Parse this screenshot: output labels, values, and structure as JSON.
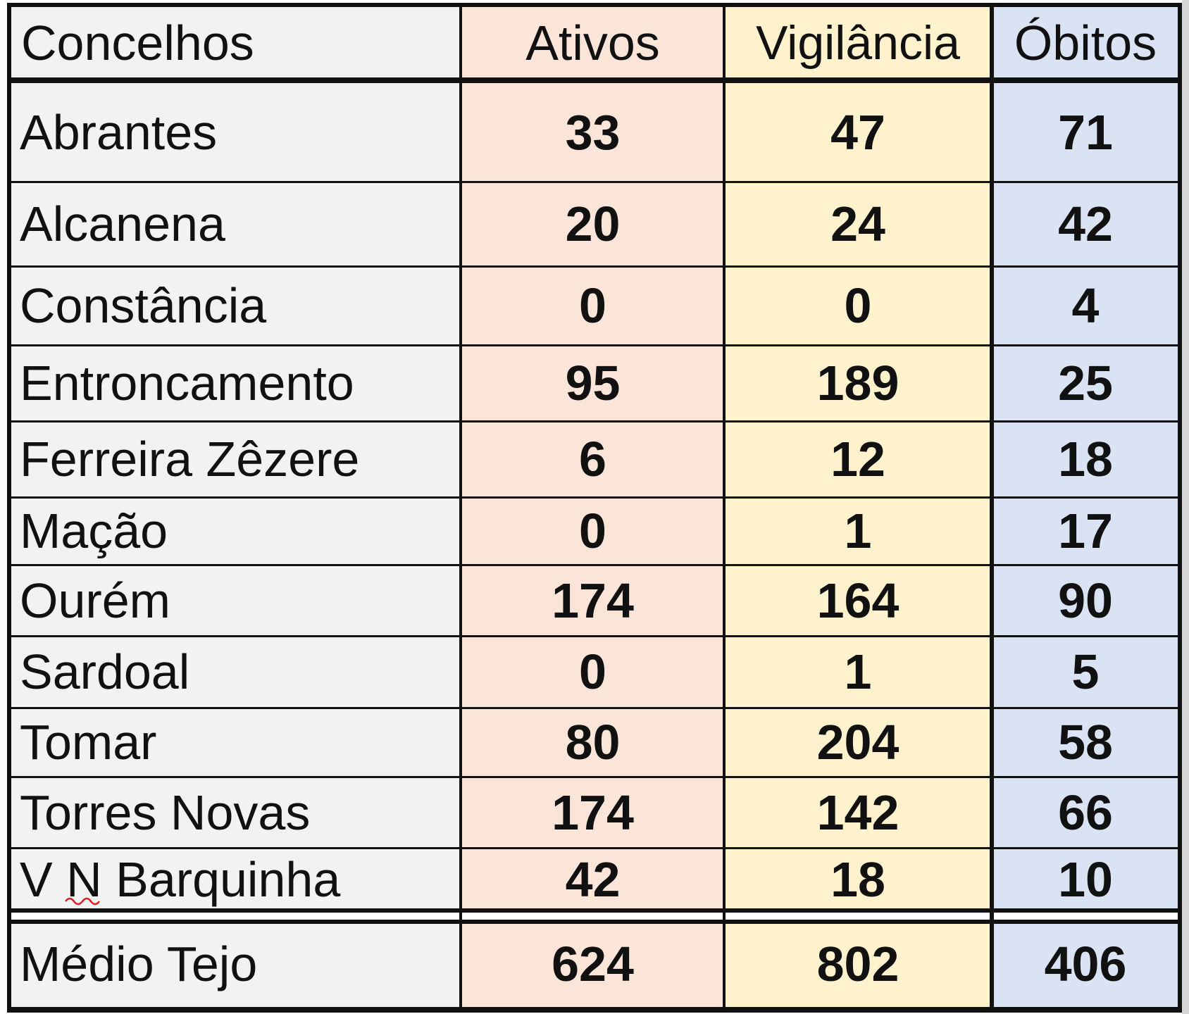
{
  "table": {
    "headers": {
      "concelhos": "Concelhos",
      "ativos": "Ativos",
      "vigilancia": "Vigilância",
      "obitos": "Óbitos"
    },
    "rows": [
      {
        "concelho": "Abrantes",
        "ativos": "33",
        "vigilancia": "47",
        "obitos": "71"
      },
      {
        "concelho": "Alcanena",
        "ativos": "20",
        "vigilancia": "24",
        "obitos": "42"
      },
      {
        "concelho": "Constância",
        "ativos": "0",
        "vigilancia": "0",
        "obitos": "4"
      },
      {
        "concelho": "Entroncamento",
        "ativos": "95",
        "vigilancia": "189",
        "obitos": "25"
      },
      {
        "concelho": "Ferreira Zêzere",
        "ativos": "6",
        "vigilancia": "12",
        "obitos": "18"
      },
      {
        "concelho": "Mação",
        "ativos": "0",
        "vigilancia": "1",
        "obitos": "17"
      },
      {
        "concelho": "Ourém",
        "ativos": "174",
        "vigilancia": "164",
        "obitos": "90"
      },
      {
        "concelho": "Sardoal",
        "ativos": "0",
        "vigilancia": "1",
        "obitos": "5"
      },
      {
        "concelho": "Tomar",
        "ativos": "80",
        "vigilancia": "204",
        "obitos": "58"
      },
      {
        "concelho": "Torres Novas",
        "ativos": "174",
        "vigilancia": "142",
        "obitos": "66"
      },
      {
        "concelho": "V N Barquinha",
        "ativos": "42",
        "vigilancia": "18",
        "obitos": "10"
      }
    ],
    "total": {
      "concelho": "Médio Tejo",
      "ativos": "624",
      "vigilancia": "802",
      "obitos": "406"
    }
  },
  "colors": {
    "name_column": "#f2f2f2",
    "ativos_column": "#fbe4d8",
    "vigilancia_column": "#fff2cc",
    "obitos_column": "#dae3f3",
    "border": "#111111",
    "spellcheck_underline": "#e02020"
  }
}
